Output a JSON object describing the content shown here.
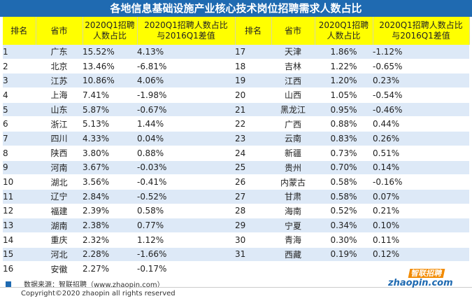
{
  "title": "各地信息基础设施产业核心技术岗位招聘需求人数占比",
  "headers": {
    "rank": "排名",
    "province": "省市",
    "share_line1": "2020Q1招聘",
    "share_line2": "人数占比",
    "diff_line1": "2020Q1招聘人数占比",
    "diff_line2": "与2016Q1差值"
  },
  "left_rows": [
    {
      "rank": "1",
      "province": "广东",
      "share": "15.52%",
      "diff": "4.13%"
    },
    {
      "rank": "2",
      "province": "北京",
      "share": "13.46%",
      "diff": "-6.81%"
    },
    {
      "rank": "3",
      "province": "江苏",
      "share": "10.86%",
      "diff": "4.06%"
    },
    {
      "rank": "4",
      "province": "上海",
      "share": "7.41%",
      "diff": "-1.98%"
    },
    {
      "rank": "5",
      "province": "山东",
      "share": "5.87%",
      "diff": "-0.67%"
    },
    {
      "rank": "6",
      "province": "浙江",
      "share": "5.13%",
      "diff": "1.44%"
    },
    {
      "rank": "7",
      "province": "四川",
      "share": "4.33%",
      "diff": "0.04%"
    },
    {
      "rank": "8",
      "province": "陕西",
      "share": "3.80%",
      "diff": "0.88%"
    },
    {
      "rank": "9",
      "province": "河南",
      "share": "3.67%",
      "diff": "-0.03%"
    },
    {
      "rank": "10",
      "province": "湖北",
      "share": "3.56%",
      "diff": "-0.41%"
    },
    {
      "rank": "11",
      "province": "辽宁",
      "share": "2.84%",
      "diff": "-0.52%"
    },
    {
      "rank": "12",
      "province": "福建",
      "share": "2.39%",
      "diff": "0.58%"
    },
    {
      "rank": "13",
      "province": "湖南",
      "share": "2.38%",
      "diff": "0.77%"
    },
    {
      "rank": "14",
      "province": "重庆",
      "share": "2.32%",
      "diff": "1.12%"
    },
    {
      "rank": "15",
      "province": "河北",
      "share": "2.28%",
      "diff": "-1.66%"
    },
    {
      "rank": "16",
      "province": "安徽",
      "share": "2.27%",
      "diff": "-0.17%"
    }
  ],
  "right_rows": [
    {
      "rank": "17",
      "province": "天津",
      "share": "1.86%",
      "diff": "-1.12%"
    },
    {
      "rank": "18",
      "province": "吉林",
      "share": "1.22%",
      "diff": "-0.65%"
    },
    {
      "rank": "19",
      "province": "江西",
      "share": "1.20%",
      "diff": "0.23%"
    },
    {
      "rank": "20",
      "province": "山西",
      "share": "1.05%",
      "diff": "-0.54%"
    },
    {
      "rank": "21",
      "province": "黑龙江",
      "share": "0.95%",
      "diff": "-0.46%"
    },
    {
      "rank": "22",
      "province": "广西",
      "share": "0.88%",
      "diff": "0.44%"
    },
    {
      "rank": "23",
      "province": "云南",
      "share": "0.83%",
      "diff": "0.26%"
    },
    {
      "rank": "24",
      "province": "新疆",
      "share": "0.73%",
      "diff": "0.51%"
    },
    {
      "rank": "25",
      "province": "贵州",
      "share": "0.70%",
      "diff": "0.14%"
    },
    {
      "rank": "26",
      "province": "内蒙古",
      "share": "0.58%",
      "diff": "-0.16%"
    },
    {
      "rank": "27",
      "province": "甘肃",
      "share": "0.58%",
      "diff": "0.07%"
    },
    {
      "rank": "28",
      "province": "海南",
      "share": "0.52%",
      "diff": "0.21%"
    },
    {
      "rank": "29",
      "province": "宁夏",
      "share": "0.34%",
      "diff": "0.10%"
    },
    {
      "rank": "30",
      "province": "青海",
      "share": "0.30%",
      "diff": "0.11%"
    },
    {
      "rank": "31",
      "province": "西藏",
      "share": "0.19%",
      "diff": "0.12%"
    }
  ],
  "source": "数据来源：智联招聘（www.zhaopin.com）",
  "copyright": "Copyright©2020 zhaopin all rights reserved",
  "logo": {
    "cn": "智联招聘",
    "en": "zhaopin.com"
  },
  "colors": {
    "title_bg": "#1f6ab1",
    "header_bg": "#ffff00",
    "stripe": "#dde9f7"
  }
}
